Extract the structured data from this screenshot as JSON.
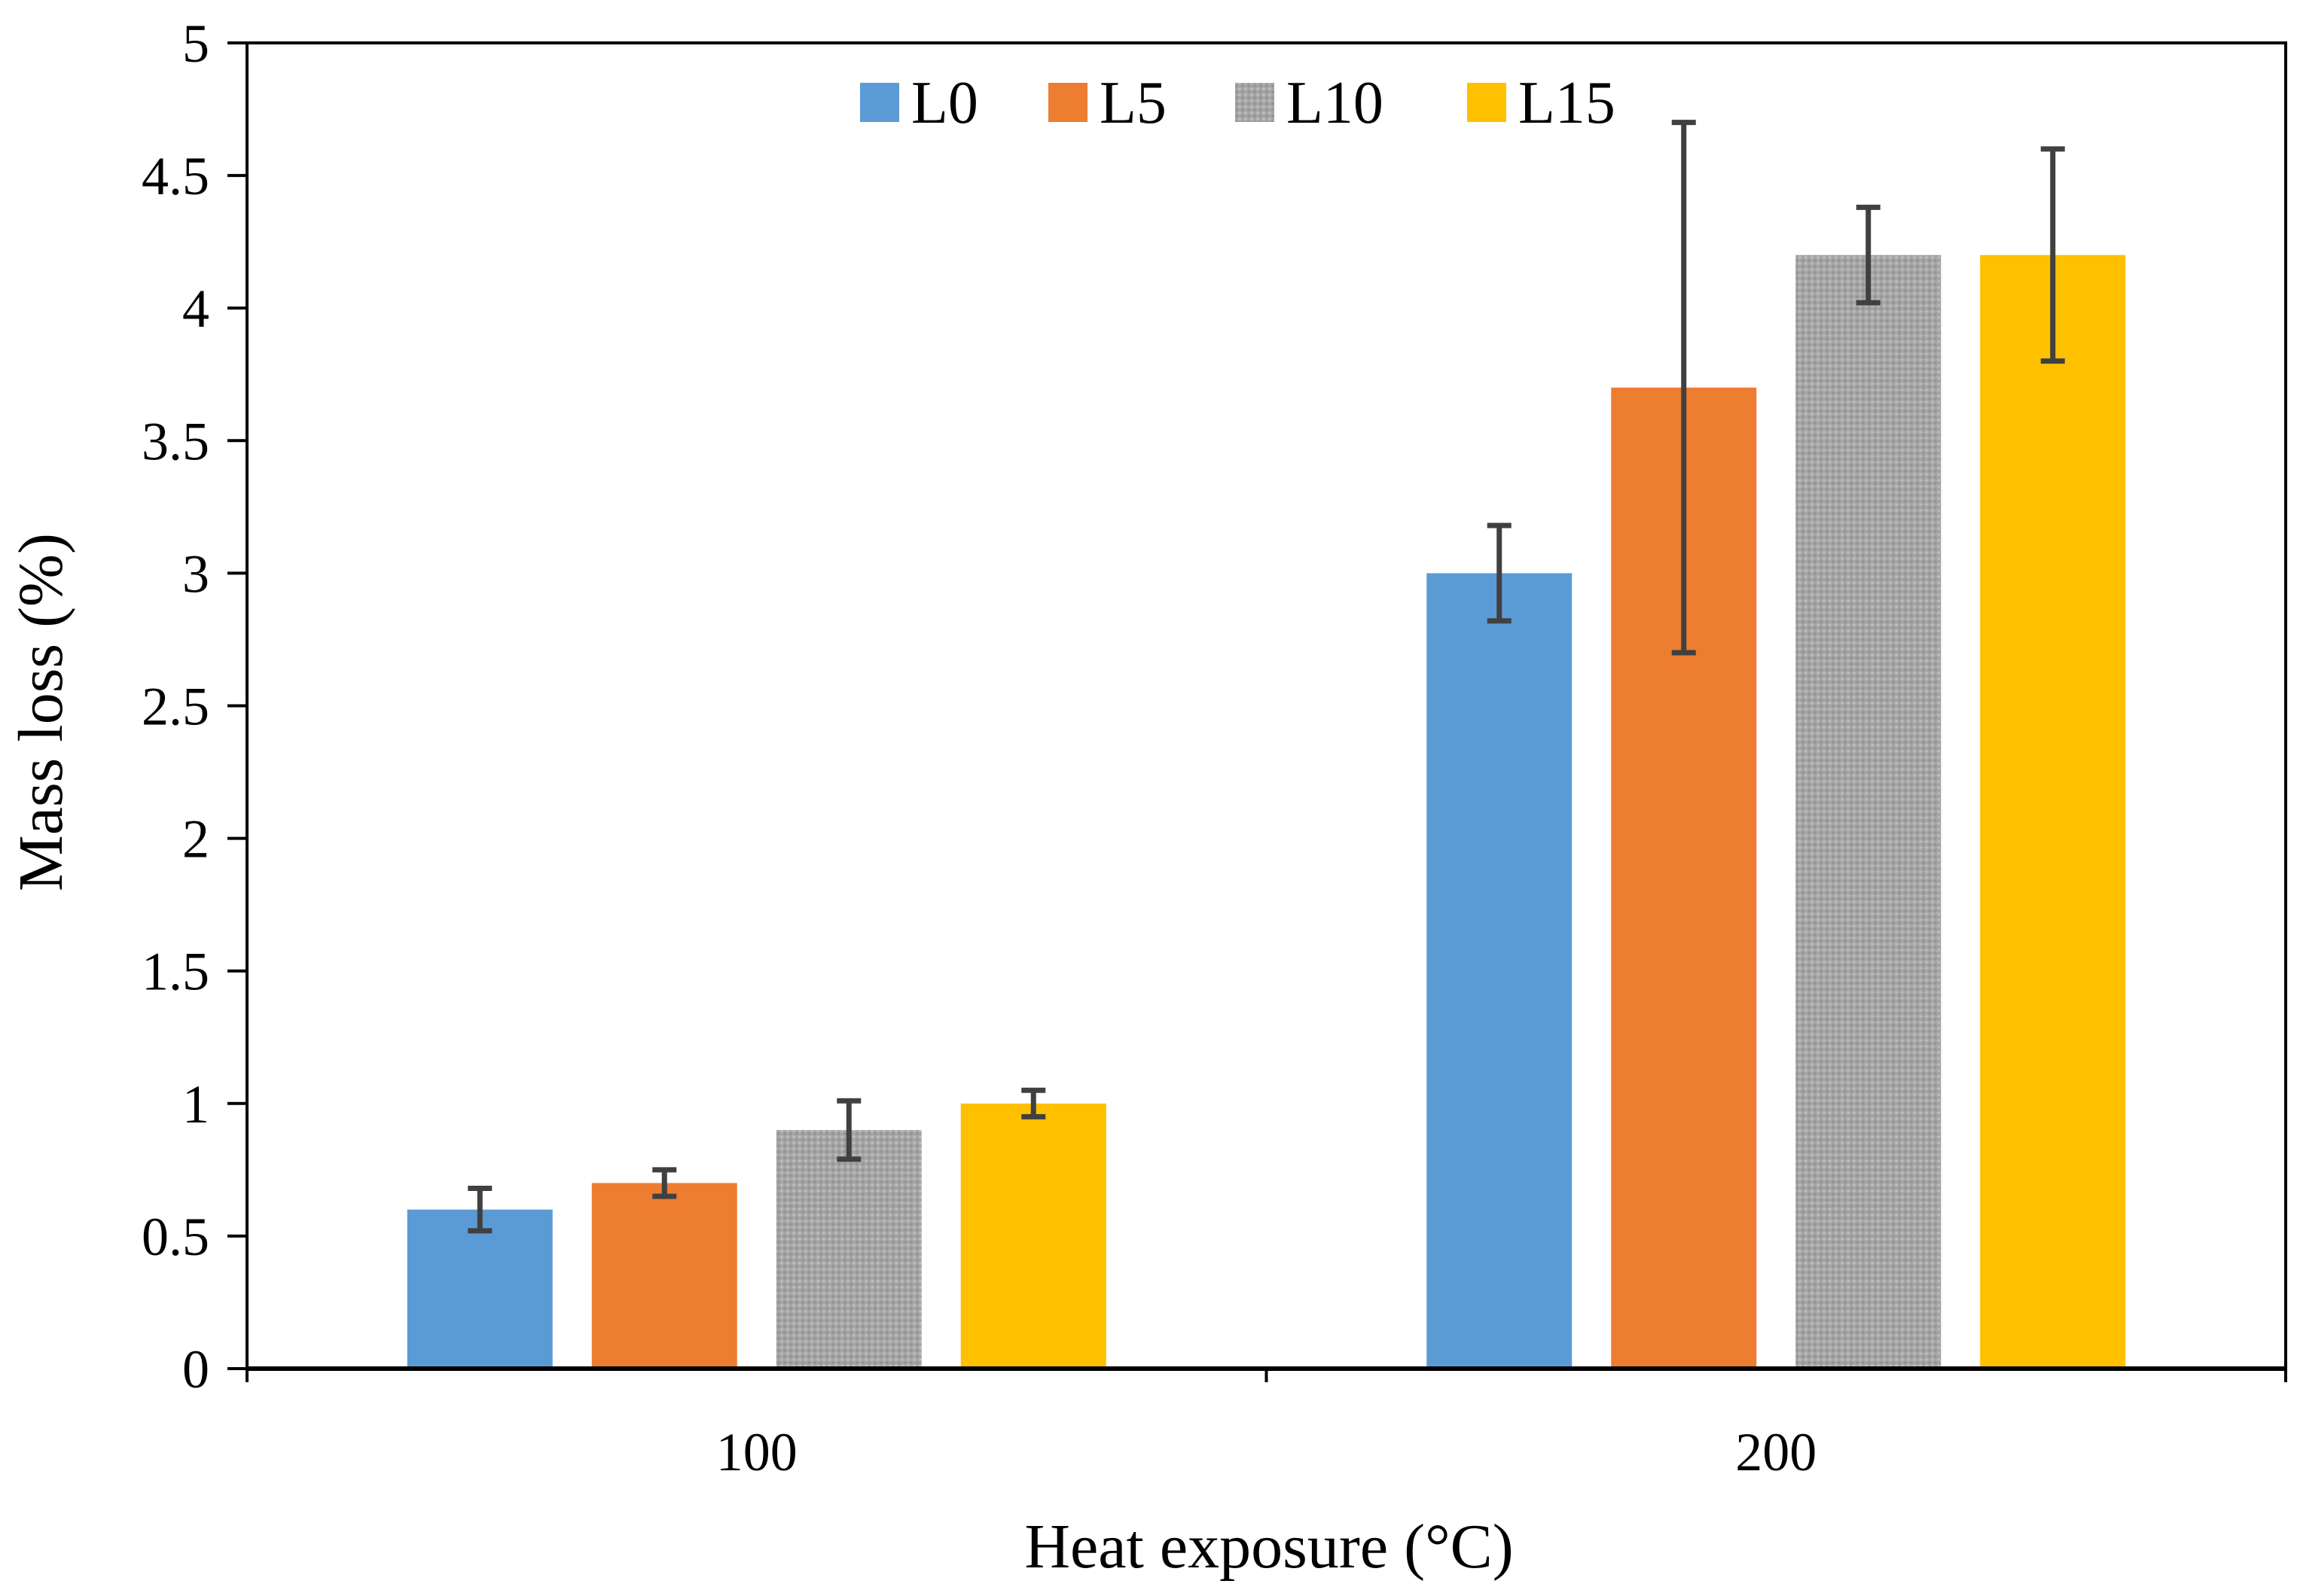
{
  "chart_data": {
    "type": "bar",
    "title": "",
    "xlabel": "Heat exposure (°C)",
    "ylabel": "Mass loss (%)",
    "categories": [
      "100",
      "200"
    ],
    "ylim": [
      0,
      5
    ],
    "yticks": [
      "0",
      "0.5",
      "1",
      "1.5",
      "2",
      "2.5",
      "3",
      "3.5",
      "4",
      "4.5",
      "5"
    ],
    "grid": false,
    "legend_position": "top-center",
    "series": [
      {
        "name": "L0",
        "color": "#5B9BD5",
        "pattern": "solid",
        "values": [
          0.6,
          3.0
        ],
        "errors": [
          0.08,
          0.18
        ]
      },
      {
        "name": "L5",
        "color": "#ED7D31",
        "pattern": "solid",
        "values": [
          0.7,
          3.7
        ],
        "errors": [
          0.05,
          1.0
        ]
      },
      {
        "name": "L10",
        "color": "#A5A5A5",
        "pattern": "dotted",
        "values": [
          0.9,
          4.2
        ],
        "errors": [
          0.11,
          0.18
        ]
      },
      {
        "name": "L15",
        "color": "#FFC000",
        "pattern": "solid",
        "values": [
          1.0,
          4.2
        ],
        "errors": [
          0.05,
          0.4
        ]
      }
    ],
    "error_bar_color": "#404040"
  }
}
